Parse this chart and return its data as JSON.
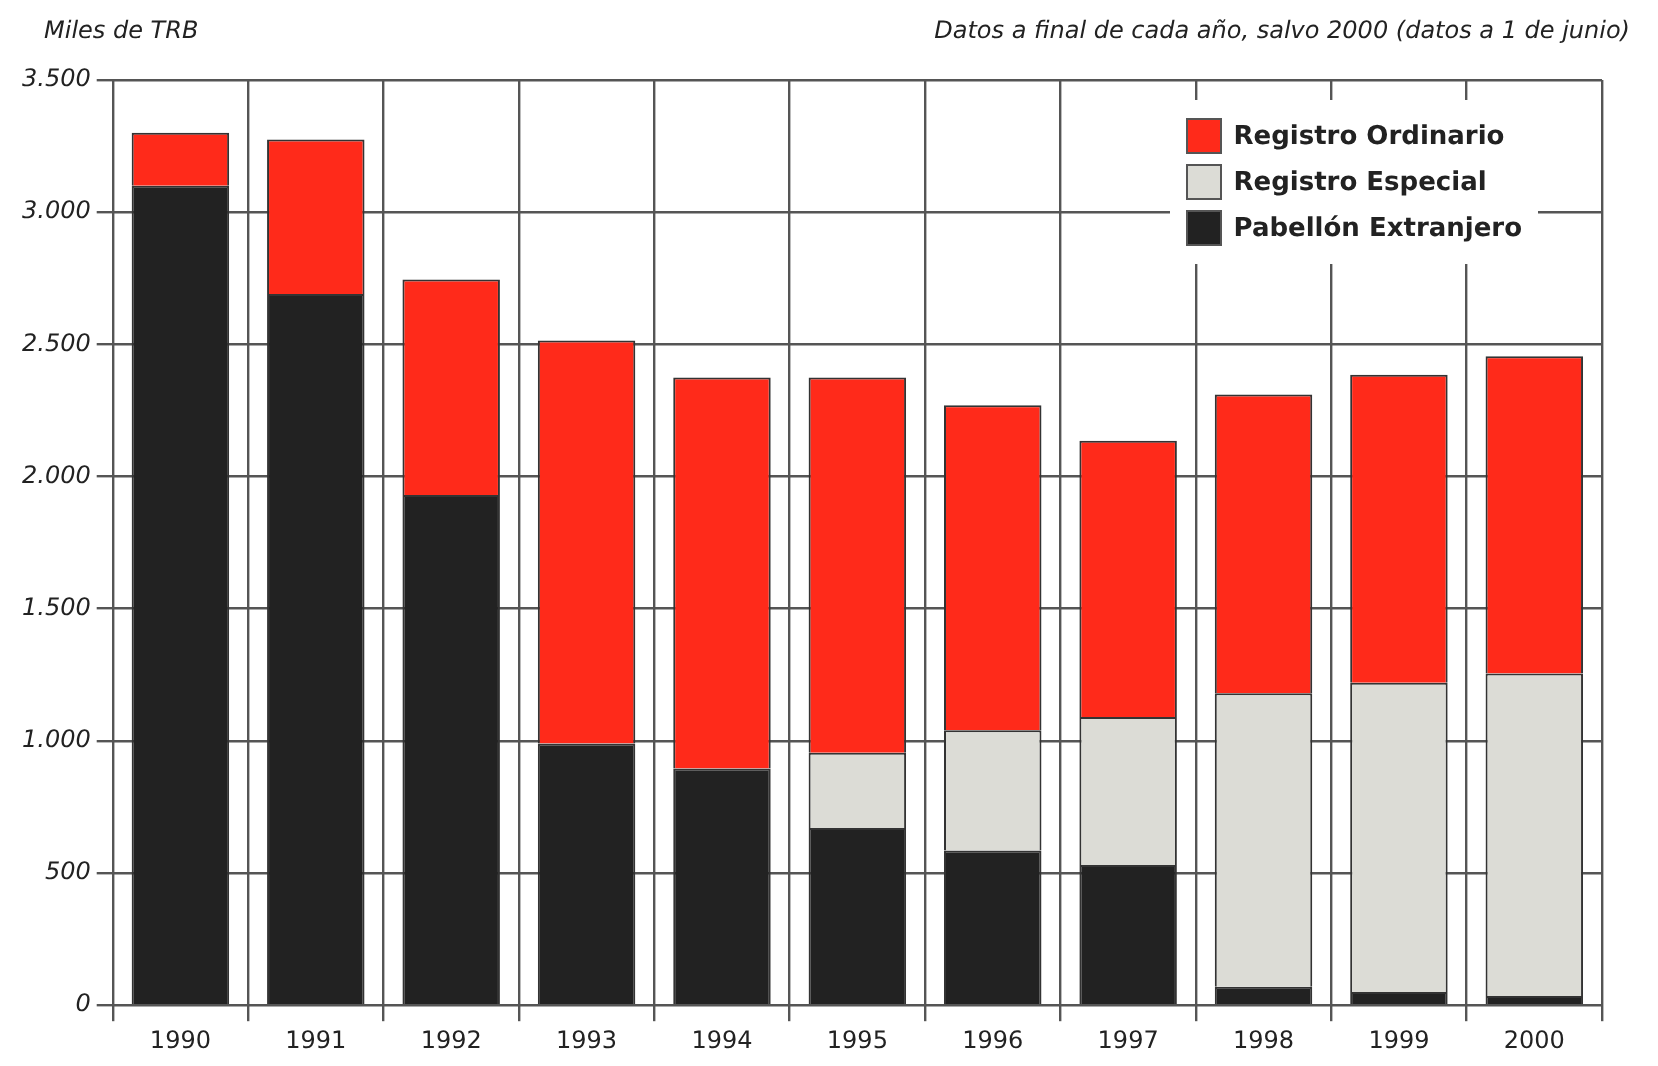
{
  "chart_data": {
    "type": "bar",
    "ylabel": "Miles de TRB",
    "subtitle": "Datos a final de cada año, salvo 2000 (datos a 1 de junio)",
    "categories": [
      "1990",
      "1991",
      "1992",
      "1993",
      "1994",
      "1995",
      "1996",
      "1997",
      "1998",
      "1999",
      "2000"
    ],
    "stacked": true,
    "series": [
      {
        "name": "Pabellón Extranjero",
        "color": "#222222",
        "values": [
          3100,
          2690,
          1930,
          990,
          895,
          670,
          585,
          530,
          70,
          50,
          35
        ]
      },
      {
        "name": "Registro Especial",
        "color": "#dcdcd6",
        "values": [
          0,
          0,
          0,
          0,
          0,
          285,
          455,
          560,
          1110,
          1170,
          1220
        ]
      },
      {
        "name": "Registro Ordinario",
        "color": "#ff2a1a",
        "values": [
          200,
          585,
          815,
          1525,
          1480,
          1420,
          1230,
          1045,
          1130,
          1165,
          1200
        ]
      }
    ],
    "ylim": [
      0,
      3500
    ],
    "yticks": [
      0,
      500,
      {
        "value": 1000,
        "label": "1.000"
      },
      {
        "value": 1500,
        "label": "1.500"
      },
      {
        "value": 2000,
        "label": "2.000"
      },
      {
        "value": 2500,
        "label": "2.500"
      },
      {
        "value": 3000,
        "label": "3.000"
      },
      {
        "value": 3500,
        "label": "3.500"
      }
    ],
    "grid": true,
    "legend": "top right"
  }
}
